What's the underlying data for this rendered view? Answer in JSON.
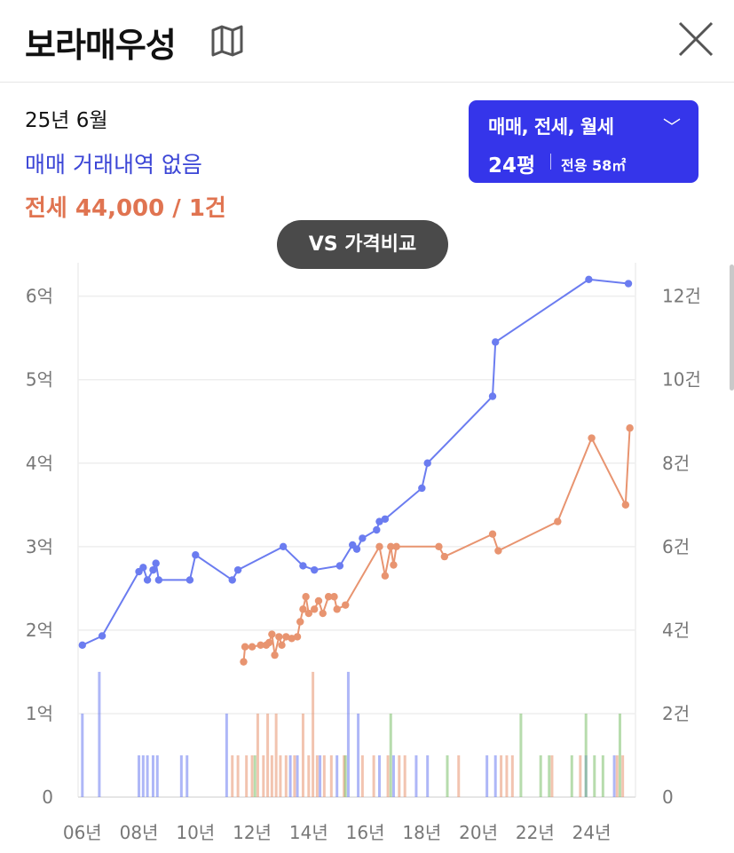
{
  "header": {
    "title": "보라매우성",
    "map_icon": "map-icon",
    "close_icon": "close-icon"
  },
  "summary": {
    "date": "25년 6월",
    "sale_status": "매매 거래내역 없음",
    "rent_status": "전세 44,000 / 1건"
  },
  "filter": {
    "types_label": "매매, 전세, 월세",
    "chevron": "﹀",
    "pyeong": "24평",
    "area": "전용 58㎡"
  },
  "compare_button": {
    "label": "VS 가격비교"
  },
  "colors": {
    "sale": "#6b7cf0",
    "rent": "#e89470",
    "wolse": "#7cc06a",
    "accent": "#3535ea",
    "rent_text": "#e07451",
    "sale_text": "#3b45d6"
  },
  "chart_data": {
    "type": "line",
    "x_ticks": [
      "06년",
      "08년",
      "10년",
      "12년",
      "14년",
      "16년",
      "18년",
      "20년",
      "22년",
      "24년"
    ],
    "y_left_ticks": [
      "0",
      "1억",
      "2억",
      "3억",
      "4억",
      "5억",
      "6억"
    ],
    "y_right_ticks": [
      "0",
      "2건",
      "4건",
      "6건",
      "8건",
      "10건",
      "12건"
    ],
    "y_left_range": [
      0,
      6.4
    ],
    "y_right_range": [
      0,
      12.8
    ],
    "x_range": [
      2005.85,
      2025.55
    ],
    "grid": true,
    "series": [
      {
        "key": "sale",
        "points": [
          [
            2006.0,
            1.82
          ],
          [
            2006.7,
            1.93
          ],
          [
            2008.0,
            2.7
          ],
          [
            2008.15,
            2.75
          ],
          [
            2008.3,
            2.6
          ],
          [
            2008.5,
            2.72
          ],
          [
            2008.6,
            2.8
          ],
          [
            2008.7,
            2.6
          ],
          [
            2009.8,
            2.6
          ],
          [
            2010.0,
            2.9
          ],
          [
            2011.3,
            2.6
          ],
          [
            2011.5,
            2.72
          ],
          [
            2013.1,
            3.0
          ],
          [
            2013.8,
            2.77
          ],
          [
            2014.2,
            2.72
          ],
          [
            2015.1,
            2.77
          ],
          [
            2015.55,
            3.02
          ],
          [
            2015.7,
            2.97
          ],
          [
            2015.9,
            3.1
          ],
          [
            2016.4,
            3.2
          ],
          [
            2016.5,
            3.3
          ],
          [
            2016.7,
            3.33
          ],
          [
            2018.0,
            3.7
          ],
          [
            2018.2,
            4.0
          ],
          [
            2020.5,
            4.8
          ],
          [
            2020.6,
            5.45
          ],
          [
            2023.9,
            6.2
          ],
          [
            2025.3,
            6.15
          ]
        ]
      },
      {
        "key": "rent",
        "points": [
          [
            2011.7,
            1.62
          ],
          [
            2011.75,
            1.8
          ],
          [
            2012.0,
            1.8
          ],
          [
            2012.3,
            1.82
          ],
          [
            2012.5,
            1.82
          ],
          [
            2012.6,
            1.85
          ],
          [
            2012.7,
            1.95
          ],
          [
            2012.8,
            1.7
          ],
          [
            2012.95,
            1.92
          ],
          [
            2013.05,
            1.82
          ],
          [
            2013.2,
            1.92
          ],
          [
            2013.4,
            1.9
          ],
          [
            2013.6,
            1.92
          ],
          [
            2013.7,
            2.1
          ],
          [
            2013.8,
            2.25
          ],
          [
            2013.9,
            2.4
          ],
          [
            2014.0,
            2.2
          ],
          [
            2014.2,
            2.25
          ],
          [
            2014.35,
            2.35
          ],
          [
            2014.5,
            2.2
          ],
          [
            2014.7,
            2.4
          ],
          [
            2014.9,
            2.4
          ],
          [
            2015.0,
            2.25
          ],
          [
            2015.3,
            2.3
          ],
          [
            2016.5,
            3.0
          ],
          [
            2016.7,
            2.65
          ],
          [
            2016.9,
            3.0
          ],
          [
            2017.0,
            2.78
          ],
          [
            2017.1,
            3.0
          ],
          [
            2018.6,
            3.0
          ],
          [
            2018.8,
            2.88
          ],
          [
            2020.5,
            3.15
          ],
          [
            2020.7,
            2.95
          ],
          [
            2022.8,
            3.3
          ],
          [
            2024.0,
            4.3
          ],
          [
            2025.2,
            3.5
          ],
          [
            2025.35,
            4.42
          ]
        ]
      }
    ],
    "volume_series": [
      {
        "key": "sale",
        "bars": [
          [
            2006.0,
            2
          ],
          [
            2006.6,
            3
          ],
          [
            2008.0,
            1
          ],
          [
            2008.15,
            1
          ],
          [
            2008.3,
            1
          ],
          [
            2008.5,
            1
          ],
          [
            2008.65,
            1
          ],
          [
            2009.5,
            1
          ],
          [
            2009.7,
            1
          ],
          [
            2011.1,
            2
          ],
          [
            2013.35,
            1
          ],
          [
            2013.6,
            1
          ],
          [
            2014.4,
            1
          ],
          [
            2015.0,
            1
          ],
          [
            2015.4,
            3
          ],
          [
            2015.75,
            2
          ],
          [
            2016.5,
            1
          ],
          [
            2017.0,
            1
          ],
          [
            2017.8,
            1
          ],
          [
            2018.2,
            1
          ],
          [
            2020.3,
            1
          ],
          [
            2020.6,
            1
          ],
          [
            2023.8,
            1
          ],
          [
            2024.8,
            1
          ]
        ]
      },
      {
        "key": "rent",
        "bars": [
          [
            2011.3,
            1
          ],
          [
            2011.5,
            1
          ],
          [
            2011.8,
            1
          ],
          [
            2012.0,
            1
          ],
          [
            2012.2,
            2
          ],
          [
            2012.4,
            1
          ],
          [
            2012.55,
            2
          ],
          [
            2012.7,
            1
          ],
          [
            2012.85,
            2
          ],
          [
            2013.0,
            1
          ],
          [
            2013.2,
            1
          ],
          [
            2013.5,
            1
          ],
          [
            2013.8,
            2
          ],
          [
            2014.0,
            1
          ],
          [
            2014.15,
            3
          ],
          [
            2014.3,
            1
          ],
          [
            2014.55,
            1
          ],
          [
            2014.8,
            1
          ],
          [
            2015.25,
            1
          ],
          [
            2015.9,
            1
          ],
          [
            2016.3,
            1
          ],
          [
            2016.8,
            1
          ],
          [
            2017.2,
            1
          ],
          [
            2017.4,
            1
          ],
          [
            2019.3,
            1
          ],
          [
            2020.8,
            1
          ],
          [
            2021.0,
            1
          ],
          [
            2021.2,
            1
          ],
          [
            2022.6,
            1
          ],
          [
            2023.6,
            1
          ],
          [
            2024.9,
            1
          ],
          [
            2025.1,
            1
          ]
        ]
      },
      {
        "key": "wolse",
        "bars": [
          [
            2012.1,
            1
          ],
          [
            2015.3,
            1
          ],
          [
            2016.9,
            2
          ],
          [
            2018.9,
            1
          ],
          [
            2021.5,
            2
          ],
          [
            2022.2,
            1
          ],
          [
            2022.5,
            1
          ],
          [
            2023.3,
            1
          ],
          [
            2023.8,
            2
          ],
          [
            2024.1,
            1
          ],
          [
            2024.4,
            1
          ],
          [
            2025.0,
            2
          ]
        ]
      }
    ]
  }
}
